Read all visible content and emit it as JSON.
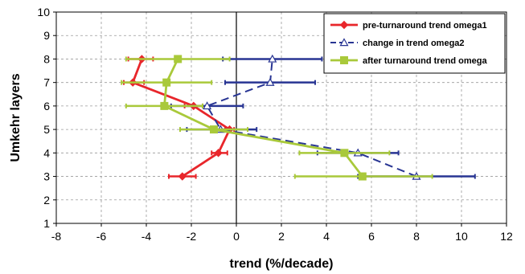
{
  "chart_data": {
    "type": "line",
    "orientation": "horizontal-x-vertical-y",
    "xlabel": "trend (%/decade)",
    "ylabel": "Umkehr layers",
    "xlim": [
      -8,
      12
    ],
    "ylim": [
      1,
      10
    ],
    "x_ticks": [
      "-8",
      "-6",
      "-4",
      "-2",
      "0",
      "2",
      "4",
      "6",
      "8",
      "10",
      "12"
    ],
    "y_ticks": [
      "1",
      "2",
      "3",
      "4",
      "5",
      "6",
      "7",
      "8",
      "9",
      "10"
    ],
    "grid": "horizontal-and-vertical-dashed",
    "zero_line": true,
    "legend_position": "top-right",
    "series": [
      {
        "name": "pre-turnaround trend omega1",
        "color": "#e8262b",
        "marker": "diamond",
        "line_style": "solid",
        "points": [
          {
            "y": 3,
            "x": -2.4,
            "err_low": -3.0,
            "err_high": -1.8
          },
          {
            "y": 4,
            "x": -0.8,
            "err_low": -1.1,
            "err_high": -0.4
          },
          {
            "y": 5,
            "x": -0.3,
            "err_low": -0.5,
            "err_high": -0.1
          },
          {
            "y": 6,
            "x": -1.9,
            "err_low": -2.3,
            "err_high": -1.5
          },
          {
            "y": 7,
            "x": -4.6,
            "err_low": -5.0,
            "err_high": -4.1
          },
          {
            "y": 8,
            "x": -4.2,
            "err_low": -4.8,
            "err_high": -3.7
          }
        ]
      },
      {
        "name": "change in trend omega2",
        "color": "#283593",
        "marker": "triangle-open",
        "line_style": "dashed",
        "points": [
          {
            "y": 3,
            "x": 8.0,
            "err_low": 5.4,
            "err_high": 10.6
          },
          {
            "y": 4,
            "x": 5.4,
            "err_low": 3.6,
            "err_high": 7.2
          },
          {
            "y": 5,
            "x": -0.7,
            "err_low": -2.2,
            "err_high": 0.9
          },
          {
            "y": 6,
            "x": -1.3,
            "err_low": -2.9,
            "err_high": 0.3
          },
          {
            "y": 7,
            "x": 1.5,
            "err_low": -0.5,
            "err_high": 3.5
          },
          {
            "y": 8,
            "x": 1.6,
            "err_low": -0.6,
            "err_high": 3.8
          }
        ]
      },
      {
        "name": "after turnaround trend omega",
        "color": "#a9c93a",
        "marker": "square",
        "line_style": "solid",
        "points": [
          {
            "y": 3,
            "x": 5.6,
            "err_low": 2.6,
            "err_high": 8.7
          },
          {
            "y": 4,
            "x": 4.8,
            "err_low": 2.8,
            "err_high": 6.8
          },
          {
            "y": 5,
            "x": -1.0,
            "err_low": -2.5,
            "err_high": 0.5
          },
          {
            "y": 6,
            "x": -3.2,
            "err_low": -4.9,
            "err_high": -1.5
          },
          {
            "y": 7,
            "x": -3.1,
            "err_low": -5.1,
            "err_high": -1.1
          },
          {
            "y": 8,
            "x": -2.6,
            "err_low": -4.9,
            "err_high": -0.3
          }
        ]
      }
    ]
  }
}
